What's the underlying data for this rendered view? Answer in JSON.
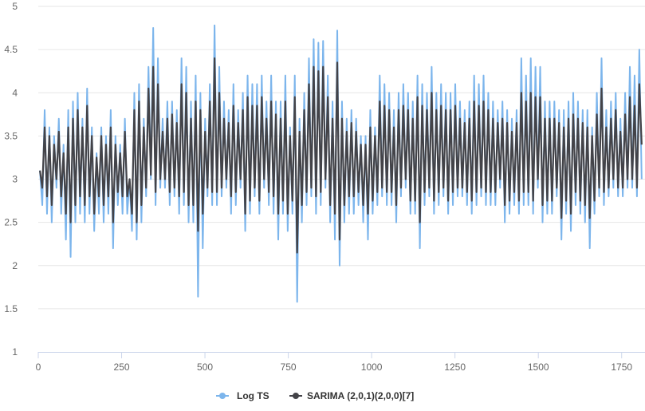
{
  "chart_data": {
    "type": "line",
    "title": "",
    "xlabel": "",
    "ylabel": "",
    "xlim": [
      0,
      1820
    ],
    "ylim": [
      1,
      5
    ],
    "x_ticks": [
      "0",
      "250",
      "500",
      "750",
      "1000",
      "1250",
      "1500",
      "1750"
    ],
    "y_ticks": [
      "1",
      "1.5",
      "2",
      "2.5",
      "3",
      "3.5",
      "4",
      "4.5",
      "5"
    ],
    "grid": "horizontal",
    "legend_position": "bottom-center",
    "series": [
      {
        "name": "Log TS",
        "color": "#7cb5ec",
        "values": [
          3.1,
          2.7,
          3.8,
          2.6,
          3.6,
          2.5,
          3.5,
          2.9,
          3.7,
          2.6,
          3.4,
          2.3,
          3.8,
          2.1,
          3.9,
          2.5,
          4.0,
          2.6,
          3.7,
          2.5,
          4.05,
          2.6,
          3.6,
          2.4,
          3.3,
          2.6,
          3.6,
          2.5,
          3.5,
          2.6,
          3.8,
          2.2,
          3.5,
          2.7,
          3.4,
          2.6,
          3.7,
          2.6,
          3.0,
          2.4,
          4.0,
          2.3,
          4.1,
          2.5,
          3.7,
          2.8,
          4.3,
          3.0,
          4.75,
          2.7,
          4.4,
          2.9,
          3.7,
          2.9,
          3.9,
          2.7,
          3.9,
          2.8,
          3.8,
          2.6,
          4.4,
          2.7,
          4.3,
          2.5,
          3.9,
          2.5,
          4.2,
          1.64,
          4.0,
          2.2,
          3.7,
          2.8,
          4.1,
          2.7,
          4.78,
          2.7,
          4.3,
          2.8,
          3.9,
          2.9,
          3.8,
          2.6,
          4.1,
          2.7,
          3.8,
          2.9,
          4.0,
          2.4,
          4.2,
          2.6,
          4.1,
          2.8,
          4.1,
          2.6,
          4.2,
          2.9,
          3.9,
          2.7,
          4.2,
          2.6,
          3.9,
          2.3,
          3.9,
          2.6,
          4.2,
          2.4,
          3.6,
          2.6,
          4.2,
          1.58,
          3.7,
          2.5,
          4.0,
          2.7,
          4.4,
          2.8,
          4.62,
          2.6,
          4.58,
          2.7,
          4.6,
          2.9,
          4.2,
          2.5,
          3.9,
          2.3,
          4.72,
          2.0,
          3.9,
          2.5,
          3.7,
          2.6,
          3.8,
          2.6,
          3.7,
          2.7,
          3.5,
          2.5,
          3.5,
          2.3,
          3.8,
          2.6,
          3.6,
          2.7,
          4.2,
          2.8,
          4.1,
          2.7,
          4.0,
          2.7,
          3.8,
          2.5,
          4.0,
          2.8,
          4.1,
          2.9,
          4.0,
          2.6,
          3.9,
          2.6,
          4.2,
          2.2,
          4.1,
          2.7,
          4.0,
          2.8,
          4.3,
          2.6,
          4.0,
          2.7,
          4.1,
          2.8,
          4.0,
          2.6,
          4.0,
          2.7,
          4.1,
          2.8,
          3.9,
          2.8,
          3.8,
          2.7,
          3.9,
          2.6,
          4.2,
          2.7,
          4.1,
          2.8,
          4.2,
          2.7,
          4.0,
          2.7,
          3.9,
          2.7,
          3.8,
          2.9,
          3.9,
          2.5,
          3.8,
          2.6,
          3.7,
          2.7,
          3.8,
          2.6,
          4.4,
          2.7,
          4.2,
          2.7,
          4.4,
          2.6,
          4.3,
          2.9,
          4.3,
          2.5,
          3.9,
          2.6,
          3.9,
          2.6,
          3.9,
          2.8,
          3.8,
          2.3,
          3.8,
          2.6,
          3.9,
          2.4,
          4.0,
          2.7,
          3.9,
          2.6,
          3.8,
          2.5,
          3.8,
          2.2,
          3.6,
          2.6,
          4.0,
          2.8,
          4.4,
          2.7,
          3.8,
          2.8,
          3.9,
          2.9,
          4.0,
          2.8,
          3.7,
          2.8,
          4.0,
          2.9,
          4.3,
          2.9,
          4.2,
          2.8,
          4.5,
          3.0
        ]
      },
      {
        "name": "SARIMA (2,0,1)(2,0,0)[7]",
        "color": "#434348",
        "values": [
          3.1,
          2.9,
          3.6,
          2.8,
          3.5,
          2.7,
          3.4,
          3.0,
          3.55,
          2.8,
          3.3,
          2.6,
          3.6,
          2.5,
          3.7,
          2.7,
          3.8,
          2.8,
          3.6,
          2.7,
          3.85,
          2.8,
          3.5,
          2.6,
          3.25,
          2.8,
          3.5,
          2.7,
          3.4,
          2.8,
          3.6,
          2.5,
          3.4,
          2.85,
          3.3,
          2.8,
          3.55,
          2.8,
          3.0,
          2.6,
          3.8,
          2.5,
          3.9,
          2.7,
          3.6,
          2.9,
          4.05,
          3.05,
          4.3,
          2.85,
          4.1,
          3.0,
          3.55,
          3.0,
          3.7,
          2.85,
          3.75,
          2.9,
          3.65,
          2.8,
          4.1,
          2.85,
          4.0,
          2.7,
          3.7,
          2.7,
          3.9,
          2.4,
          3.8,
          2.6,
          3.55,
          2.9,
          3.9,
          2.85,
          4.4,
          2.85,
          4.0,
          2.9,
          3.7,
          3.0,
          3.65,
          2.8,
          3.85,
          2.85,
          3.65,
          3.0,
          3.8,
          2.6,
          3.95,
          2.75,
          3.85,
          2.9,
          3.85,
          2.75,
          3.95,
          3.0,
          3.7,
          2.85,
          3.9,
          2.8,
          3.75,
          2.6,
          3.7,
          2.75,
          3.9,
          2.6,
          3.5,
          2.75,
          3.95,
          2.15,
          3.55,
          2.7,
          3.8,
          2.85,
          4.1,
          2.9,
          4.3,
          2.8,
          4.25,
          2.85,
          4.3,
          3.0,
          3.95,
          2.7,
          3.7,
          2.6,
          4.35,
          2.3,
          3.7,
          2.7,
          3.55,
          2.8,
          3.65,
          2.8,
          3.55,
          2.85,
          3.4,
          2.7,
          3.4,
          2.6,
          3.6,
          2.75,
          3.5,
          2.85,
          3.9,
          2.9,
          3.85,
          2.85,
          3.8,
          2.85,
          3.6,
          2.7,
          3.8,
          2.9,
          3.85,
          3.0,
          3.8,
          2.75,
          3.7,
          2.75,
          3.95,
          2.5,
          3.85,
          2.85,
          3.8,
          2.9,
          4.0,
          2.75,
          3.8,
          2.85,
          3.85,
          2.9,
          3.8,
          2.75,
          3.8,
          2.85,
          3.85,
          2.9,
          3.7,
          2.9,
          3.65,
          2.85,
          3.7,
          2.75,
          3.9,
          2.85,
          3.85,
          2.9,
          3.9,
          2.85,
          3.8,
          2.85,
          3.7,
          2.85,
          3.65,
          3.0,
          3.7,
          2.7,
          3.65,
          2.75,
          3.55,
          2.85,
          3.65,
          2.75,
          4.0,
          2.85,
          3.9,
          2.85,
          4.0,
          2.75,
          3.95,
          3.0,
          3.95,
          2.7,
          3.7,
          2.75,
          3.7,
          2.75,
          3.7,
          2.9,
          3.65,
          2.55,
          3.6,
          2.75,
          3.7,
          2.6,
          3.75,
          2.85,
          3.7,
          2.75,
          3.65,
          2.7,
          3.6,
          2.55,
          3.5,
          2.75,
          3.75,
          2.9,
          4.05,
          2.85,
          3.6,
          2.9,
          3.7,
          3.0,
          3.8,
          2.9,
          3.55,
          2.9,
          3.75,
          3.0,
          3.95,
          3.0,
          3.85,
          2.9,
          4.1,
          3.4
        ]
      }
    ]
  }
}
